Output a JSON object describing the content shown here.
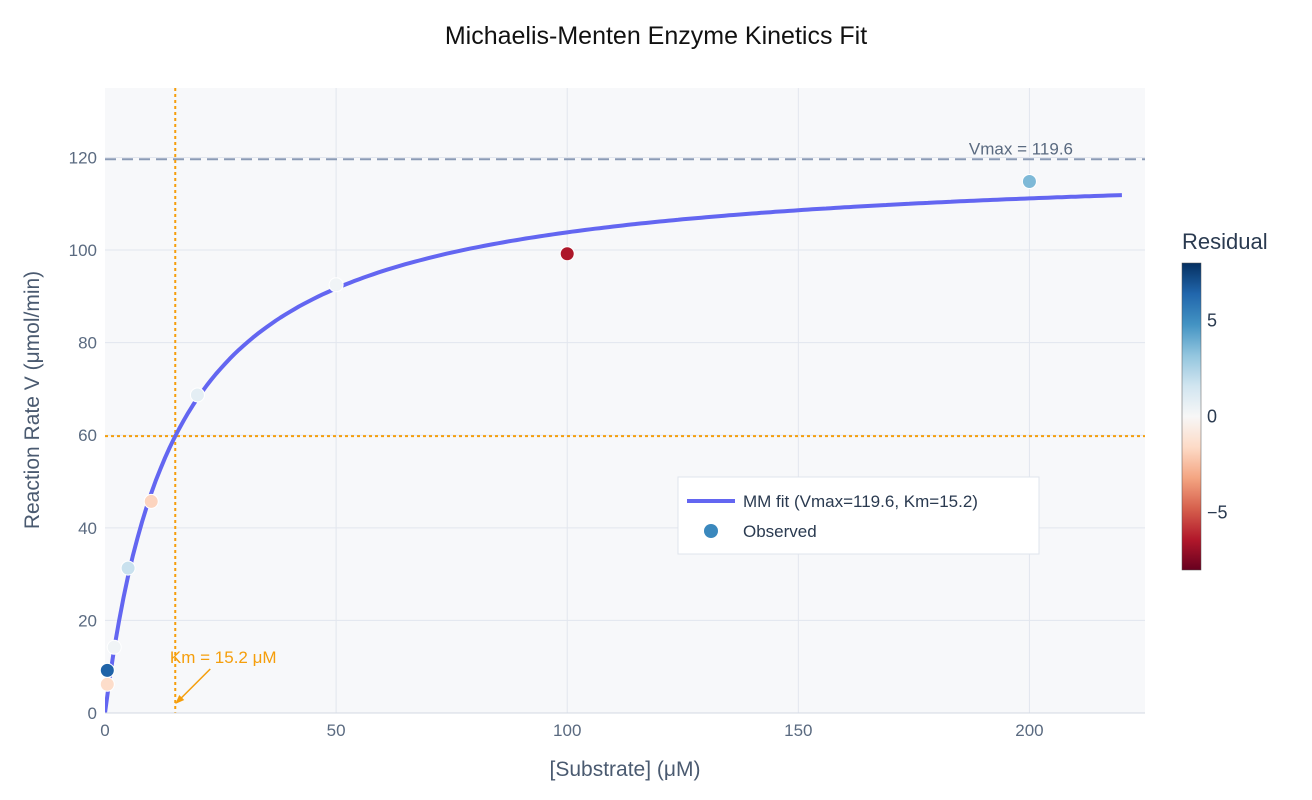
{
  "chart_data": {
    "type": "scatter",
    "title": "Michaelis-Menten Enzyme Kinetics Fit",
    "xlabel": "[Substrate] (μM)",
    "ylabel": "Reaction Rate V (μmol/min)",
    "xlim": [
      0,
      225
    ],
    "ylim": [
      0,
      135
    ],
    "x_ticks": [
      0,
      50,
      100,
      150,
      200
    ],
    "y_ticks": [
      0,
      20,
      40,
      60,
      80,
      100,
      120
    ],
    "grid": true,
    "legend_position": "center-right",
    "fit": {
      "name": "MM fit (Vmax=119.6, Km=15.2)",
      "vmax": 119.6,
      "km": 15.2,
      "x_range": [
        0,
        220
      ],
      "color": "#6366f1"
    },
    "observed": {
      "name": "Observed",
      "legend_color": "#3a88bd",
      "points": [
        {
          "x": 0.5,
          "y": 6.2,
          "residual": -1.5
        },
        {
          "x": 0.5,
          "y": 9.2,
          "residual": 6.5
        },
        {
          "x": 2,
          "y": 14.2,
          "residual": 0.3
        },
        {
          "x": 5,
          "y": 31.3,
          "residual": 1.8
        },
        {
          "x": 10,
          "y": 45.7,
          "residual": -1.8
        },
        {
          "x": 20,
          "y": 68.7,
          "residual": 0.8
        },
        {
          "x": 50,
          "y": 92.5,
          "residual": 0.3
        },
        {
          "x": 100,
          "y": 99.2,
          "residual": -6.5
        },
        {
          "x": 200,
          "y": 114.8,
          "residual": 3.6
        }
      ]
    },
    "colorbar": {
      "title": "Residual",
      "range": [
        -8,
        8
      ],
      "ticks": [
        5,
        0,
        -5
      ],
      "tick_labels": [
        "5",
        "0",
        "−5"
      ],
      "colorscale": [
        "#67001f",
        "#b2182b",
        "#d6604d",
        "#f4a582",
        "#fddbc7",
        "#f7f7f7",
        "#d1e5f0",
        "#92c5de",
        "#4393c3",
        "#2166ac",
        "#053061"
      ]
    },
    "annotations": {
      "vmax_label": "Vmax = 119.6",
      "km_label": "Km = 15.2 μM",
      "half_vmax": 59.8,
      "km_line_color": "#f59e0b",
      "vmax_line_color": "#8b9bb6"
    }
  }
}
